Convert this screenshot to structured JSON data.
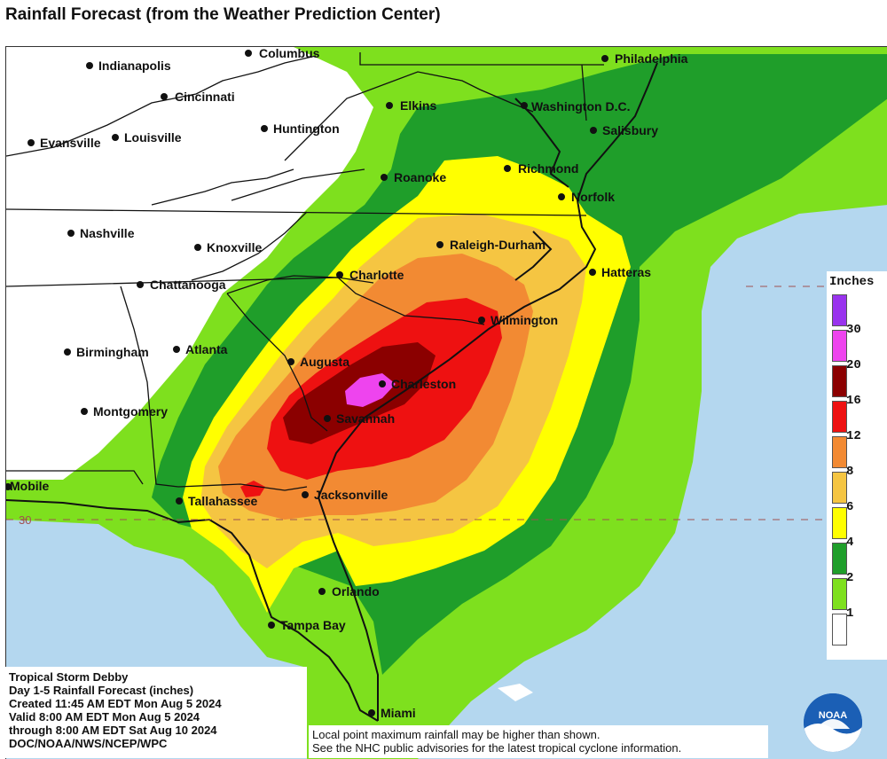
{
  "title": "Rainfall Forecast (from the Weather Prediction Center)",
  "latitude_label": "30",
  "cities": [
    {
      "name": "Indianapolis"
    },
    {
      "name": "Columbus"
    },
    {
      "name": "Philadelphia"
    },
    {
      "name": "Cincinnati"
    },
    {
      "name": "Elkins"
    },
    {
      "name": "Washington D.C."
    },
    {
      "name": "Huntington"
    },
    {
      "name": "Salisbury"
    },
    {
      "name": "Evansville"
    },
    {
      "name": "Louisville"
    },
    {
      "name": "Richmond"
    },
    {
      "name": "Roanoke"
    },
    {
      "name": "Norfolk"
    },
    {
      "name": "Nashville"
    },
    {
      "name": "Knoxville"
    },
    {
      "name": "Raleigh-Durham"
    },
    {
      "name": "Hatteras"
    },
    {
      "name": "Charlotte"
    },
    {
      "name": "Chattanooga"
    },
    {
      "name": "Wilmington"
    },
    {
      "name": "Birmingham"
    },
    {
      "name": "Atlanta"
    },
    {
      "name": "Augusta"
    },
    {
      "name": "Charleston"
    },
    {
      "name": "Montgomery"
    },
    {
      "name": "Savannah"
    },
    {
      "name": "Mobile"
    },
    {
      "name": "Tallahassee"
    },
    {
      "name": "Jacksonville"
    },
    {
      "name": "Orlando"
    },
    {
      "name": "Tampa Bay"
    },
    {
      "name": "Miami"
    }
  ],
  "legend": {
    "title": "Inches",
    "bins": [
      {
        "label": "",
        "color": "#9933ee"
      },
      {
        "label": "30",
        "color": "#ee44ee"
      },
      {
        "label": "20",
        "color": "#8b0000"
      },
      {
        "label": "16",
        "color": "#ee1111"
      },
      {
        "label": "12",
        "color": "#f28a33"
      },
      {
        "label": "8",
        "color": "#f5c542"
      },
      {
        "label": "6",
        "color": "#ffff00"
      },
      {
        "label": "4",
        "color": "#1f9e2a"
      },
      {
        "label": "2",
        "color": "#7ee01e"
      },
      {
        "label": "1",
        "color": "#ffffff"
      }
    ]
  },
  "info_box": {
    "line1": "Tropical Storm Debby",
    "line2": "Day 1-5 Rainfall Forecast (inches)",
    "line3": "Created 11:45 AM EDT Mon Aug 5 2024",
    "line4": "Valid 8:00 AM EDT Mon Aug 5 2024",
    "line5": "through 8:00 AM EDT Sat Aug 10 2024",
    "line6": "DOC/NOAA/NWS/NCEP/WPC"
  },
  "note": {
    "line1": "Local point maximum rainfall may be higher than shown.",
    "line2": "See the NHC public advisories for the latest tropical cyclone information."
  },
  "logo_text": "NOAA",
  "colors": {
    "ocean": "#b4d7ef",
    "land": "#ffffff",
    "light_green": "#7ee01e",
    "dark_green": "#1f9e2a",
    "yellow": "#ffff00",
    "gold": "#f5c542",
    "orange": "#f28a33",
    "red": "#ee1111",
    "dark_red": "#8b0000",
    "magenta": "#ee44ee"
  }
}
